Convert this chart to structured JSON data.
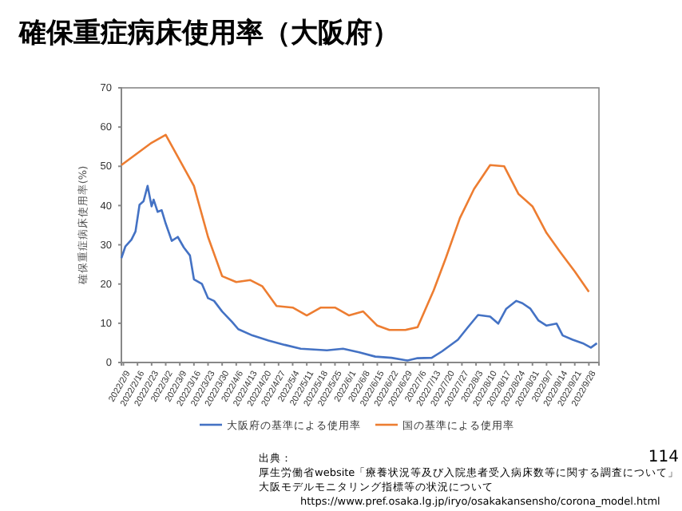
{
  "chart_data": {
    "type": "line",
    "title": "確保重症病床使用率（大阪府）",
    "ylabel": "確保重症病床使用率(%)",
    "xlim": [
      "2022-02-08",
      "2022-10-03"
    ],
    "xticks": [
      {
        "value": "2022-02-09",
        "label": "2022/2/9"
      },
      {
        "value": "2022-02-16",
        "label": "2022/2/16"
      },
      {
        "value": "2022-02-23",
        "label": "2022/2/23"
      },
      {
        "value": "2022-03-02",
        "label": "2022/3/2"
      },
      {
        "value": "2022-03-09",
        "label": "2022/3/9"
      },
      {
        "value": "2022-03-16",
        "label": "2022/3/16"
      },
      {
        "value": "2022-03-23",
        "label": "2022/3/23"
      },
      {
        "value": "2022-03-30",
        "label": "2022/3/30"
      },
      {
        "value": "2022-04-06",
        "label": "2022/4/6"
      },
      {
        "value": "2022-04-13",
        "label": "2022/4/13"
      },
      {
        "value": "2022-04-20",
        "label": "2022/4/20"
      },
      {
        "value": "2022-04-27",
        "label": "2022/4/27"
      },
      {
        "value": "2022-05-04",
        "label": "2022/5/4"
      },
      {
        "value": "2022-05-11",
        "label": "2022/5/11"
      },
      {
        "value": "2022-05-18",
        "label": "2022/5/18"
      },
      {
        "value": "2022-05-25",
        "label": "2022/5/25"
      },
      {
        "value": "2022-06-01",
        "label": "2022/6/1"
      },
      {
        "value": "2022-06-08",
        "label": "2022/6/8"
      },
      {
        "value": "2022-06-15",
        "label": "2022/6/15"
      },
      {
        "value": "2022-06-22",
        "label": "2022/6/22"
      },
      {
        "value": "2022-06-29",
        "label": "2022/6/29"
      },
      {
        "value": "2022-07-06",
        "label": "2022/7/6"
      },
      {
        "value": "2022-07-13",
        "label": "2022/7/13"
      },
      {
        "value": "2022-07-20",
        "label": "2022/7/20"
      },
      {
        "value": "2022-07-27",
        "label": "2022/7/27"
      },
      {
        "value": "2022-08-03",
        "label": "2022/8/3"
      },
      {
        "value": "2022-08-10",
        "label": "2022/8/10"
      },
      {
        "value": "2022-08-17",
        "label": "2022/8/17"
      },
      {
        "value": "2022-08-24",
        "label": "2022/8/24"
      },
      {
        "value": "2022-08-31",
        "label": "2022/8/31"
      },
      {
        "value": "2022-09-07",
        "label": "2022/9/7"
      },
      {
        "value": "2022-09-14",
        "label": "2022/9/14"
      },
      {
        "value": "2022-09-21",
        "label": "2022/9/21"
      },
      {
        "value": "2022-09-28",
        "label": "2022/9/28"
      }
    ],
    "ylim": [
      0,
      70
    ],
    "yticks": [
      0,
      10,
      20,
      30,
      40,
      50,
      60,
      70
    ],
    "grid": false,
    "legend": "bottom",
    "marker": "none",
    "line_style": "solid",
    "series": [
      {
        "name": "大阪府の基準による使用率",
        "color": "#4472c4",
        "x": [
          "2022-02-08",
          "2022-02-10",
          "2022-02-13",
          "2022-02-15",
          "2022-02-17",
          "2022-02-19",
          "2022-02-21",
          "2022-02-23",
          "2022-02-24",
          "2022-02-26",
          "2022-02-28",
          "2022-03-02",
          "2022-03-05",
          "2022-03-08",
          "2022-03-11",
          "2022-03-14",
          "2022-03-16",
          "2022-03-20",
          "2022-03-23",
          "2022-03-26",
          "2022-03-30",
          "2022-04-04",
          "2022-04-07",
          "2022-04-14",
          "2022-04-22",
          "2022-04-30",
          "2022-05-08",
          "2022-05-21",
          "2022-05-29",
          "2022-06-06",
          "2022-06-14",
          "2022-06-22",
          "2022-06-30",
          "2022-07-05",
          "2022-07-12",
          "2022-07-17",
          "2022-07-25",
          "2022-07-30",
          "2022-08-04",
          "2022-08-10",
          "2022-08-14",
          "2022-08-18",
          "2022-08-23",
          "2022-08-26",
          "2022-08-30",
          "2022-09-03",
          "2022-09-07",
          "2022-09-12",
          "2022-09-15",
          "2022-09-20",
          "2022-09-25",
          "2022-09-29",
          "2022-10-02"
        ],
        "values": [
          26.6,
          29.6,
          31.3,
          33.4,
          40.2,
          41.1,
          45,
          39.8,
          41.5,
          38.4,
          38.8,
          35.4,
          31,
          32,
          29.3,
          27.3,
          21.2,
          20,
          16.4,
          15.7,
          13,
          10.3,
          8.5,
          6.9,
          5.6,
          4.5,
          3.5,
          3.1,
          3.5,
          2.6,
          1.5,
          1.2,
          0.5,
          1.1,
          1.2,
          2.8,
          5.8,
          9,
          12.1,
          11.7,
          9.9,
          13.7,
          15.7,
          15.1,
          13.7,
          10.7,
          9.4,
          9.9,
          6.9,
          5.8,
          4.9,
          3.8,
          4.9
        ]
      },
      {
        "name": "国の基準による使用率",
        "color": "#ed7d31",
        "x": [
          "2022-02-08",
          "2022-02-23",
          "2022-03-02",
          "2022-03-16",
          "2022-03-23",
          "2022-03-30",
          "2022-04-06",
          "2022-04-13",
          "2022-04-19",
          "2022-04-26",
          "2022-05-04",
          "2022-05-11",
          "2022-05-18",
          "2022-05-25",
          "2022-06-01",
          "2022-06-08",
          "2022-06-15",
          "2022-06-21",
          "2022-06-29",
          "2022-07-05",
          "2022-07-13",
          "2022-07-19",
          "2022-07-26",
          "2022-08-02",
          "2022-08-10",
          "2022-08-17",
          "2022-08-24",
          "2022-08-31",
          "2022-09-07",
          "2022-09-14",
          "2022-09-21",
          "2022-09-28"
        ],
        "values": [
          50.3,
          56,
          58,
          45,
          32,
          22,
          20.5,
          21,
          19.4,
          14.4,
          14,
          12,
          14,
          14,
          12,
          13,
          9.4,
          8.3,
          8.3,
          9,
          18.4,
          26.6,
          36.8,
          44.2,
          50.3,
          50,
          43,
          39.8,
          33,
          28,
          23.2,
          18
        ]
      }
    ],
    "annotations": [
      "出典：",
      "厚生労働省website「療養状況等及び入院患者受入病床数等に関する調査について」",
      "大阪モデルモニタリング指標等の状況について",
      "https://www.pref.osaka.lg.jp/iryo/osakakansensho/corona_model.html",
      "114"
    ]
  }
}
